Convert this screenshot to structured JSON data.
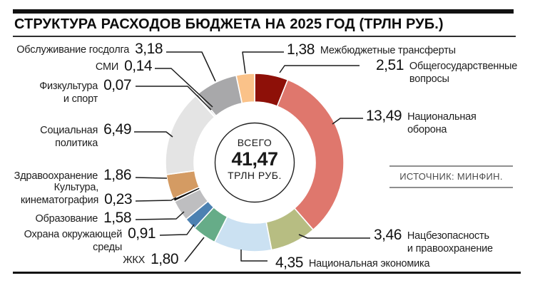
{
  "title": "СТРУКТУРА РАСХОДОВ БЮДЖЕТА НА 2025 ГОД (ТРЛН РУБ.)",
  "source": "ИСТОЧНИК: МИНФИН.",
  "center": {
    "top": "ВСЕГО",
    "value": "41,47",
    "bottom": "ТРЛН РУБ."
  },
  "chart_data": {
    "type": "pie",
    "variant": "donut",
    "title": "СТРУКТУРА РАСХОДОВ БЮДЖЕТА НА 2025 ГОД (ТРЛН РУБ.)",
    "total": 41.47,
    "total_label": "41,47",
    "units": "трлн руб.",
    "start_angle_deg": 0,
    "direction": "clockwise",
    "legend_position": "callouts",
    "segments": [
      {
        "label": "Общегосударственные вопросы",
        "value": 2.51,
        "display": "2,51",
        "color": "#8e1008"
      },
      {
        "label": "Национальная оборона",
        "value": 13.49,
        "display": "13,49",
        "color": "#df776d"
      },
      {
        "label": "Нацбезопасность и правоохранение",
        "value": 3.46,
        "display": "3,46",
        "color": "#b7bd82"
      },
      {
        "label": "Национальная экономика",
        "value": 4.35,
        "display": "4,35",
        "color": "#cbe1f2"
      },
      {
        "label": "ЖКХ",
        "value": 1.8,
        "display": "1,80",
        "color": "#66ac88"
      },
      {
        "label": "Охрана окружающей среды",
        "value": 0.91,
        "display": "0,91",
        "color": "#4c81b1"
      },
      {
        "label": "Образование",
        "value": 1.58,
        "display": "1,58",
        "color": "#bebec0"
      },
      {
        "label": "Культура, кинематография",
        "value": 0.23,
        "display": "0,23",
        "color": "#101010"
      },
      {
        "label": "Здравоохранение",
        "value": 1.86,
        "display": "1,86",
        "color": "#d49b63"
      },
      {
        "label": "Социальная политика",
        "value": 6.49,
        "display": "6,49",
        "color": "#e4e4e4"
      },
      {
        "label": "Физкультура и спорт",
        "value": 0.07,
        "display": "0,07",
        "color": "#e8e8e8"
      },
      {
        "label": "СМИ",
        "value": 0.14,
        "display": "0,14",
        "color": "#97989a"
      },
      {
        "label": "Обслуживание госдолга",
        "value": 3.18,
        "display": "3,18",
        "color": "#a8a8aa"
      },
      {
        "label": "Межбюджетные трансферты",
        "value": 1.38,
        "display": "1,38",
        "color": "#fac289"
      }
    ]
  },
  "callouts": {
    "gosdolg": {
      "lines": [
        "Обслуживание госдолга"
      ],
      "value": "3,18"
    },
    "smi": {
      "lines": [
        "СМИ"
      ],
      "value": "0,14"
    },
    "fizkultura": {
      "lines": [
        "Физкультура",
        "и спорт"
      ],
      "value": "0,07"
    },
    "socpolitika": {
      "lines": [
        "Социальная",
        "политика"
      ],
      "value": "6,49"
    },
    "zdrav": {
      "lines": [
        "Здравоохранение"
      ],
      "value": "1,86"
    },
    "kultura": {
      "lines": [
        "Культура,",
        "кинематография"
      ],
      "value": "0,23"
    },
    "obrazovanie": {
      "lines": [
        "Образование"
      ],
      "value": "1,58"
    },
    "ohrana": {
      "lines": [
        "Охрана окружающей",
        "среды"
      ],
      "value": "0,91"
    },
    "zhkh": {
      "lines": [
        "ЖКХ"
      ],
      "value": "1,80"
    },
    "mezhbyudzhet": {
      "lines": [
        "Межбюджетные трансферты"
      ],
      "value": "1,38"
    },
    "obshchegos": {
      "lines": [
        "Общегосударственные",
        "вопросы"
      ],
      "value": "2,51"
    },
    "oborona": {
      "lines": [
        "Национальная",
        "оборона"
      ],
      "value": "13,49"
    },
    "natsbez": {
      "lines": [
        "Нацбезопасность",
        "и правоохранение"
      ],
      "value": "3,46"
    },
    "ekonomika": {
      "lines": [
        "Национальная экономика"
      ],
      "value": "4,35"
    }
  }
}
